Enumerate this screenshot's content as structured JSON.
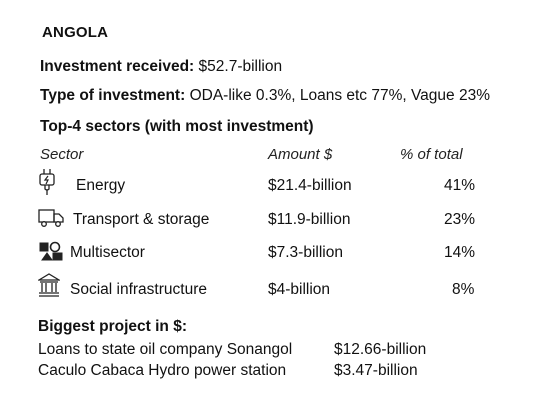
{
  "country": "ANGOLA",
  "investment": {
    "label": "Investment received:",
    "value": "$52.7-billion"
  },
  "type": {
    "label": "Type of investment:",
    "value": "ODA-like 0.3%, Loans etc 77%, Vague 23%"
  },
  "sectors_title": "Top-4 sectors (with most investment)",
  "columns": {
    "sector": "Sector",
    "amount": "Amount $",
    "pct": "% of total"
  },
  "rows": [
    {
      "icon": "plug-lightning-icon",
      "sector": "Energy",
      "amount": "$21.4-billion",
      "pct": "41%"
    },
    {
      "icon": "truck-icon",
      "sector": "Transport & storage",
      "amount": "$11.9-billion",
      "pct": "23%"
    },
    {
      "icon": "multisector-icon",
      "sector": "Multisector",
      "amount": "$7.3-billion",
      "pct": "14%"
    },
    {
      "icon": "institution-building-icon",
      "sector": "Social infrastructure",
      "amount": "$4-billion",
      "pct": "8%"
    }
  ],
  "biggest": {
    "title": "Biggest project in $:",
    "projects": [
      {
        "name": "Loans to state oil company Sonangol",
        "value": "$12.66-billion"
      },
      {
        "name": "Caculo Cabaca Hydro power station",
        "value": "$3.47-billion"
      }
    ]
  }
}
